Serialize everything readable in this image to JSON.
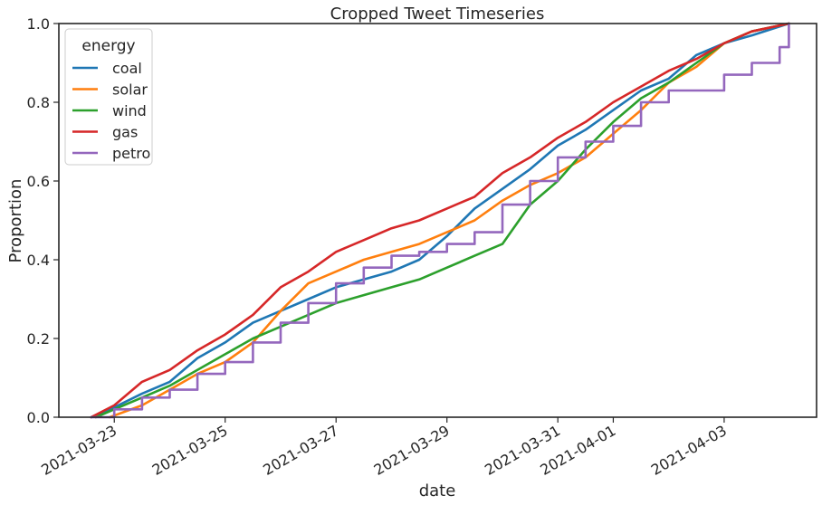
{
  "chart_data": {
    "type": "line",
    "title": "Cropped Tweet Timeseries",
    "xlabel": "date",
    "ylabel": "Proportion",
    "xlim": [
      "2021-03-22T00:00",
      "2021-04-04T16:00"
    ],
    "ylim": [
      0,
      1
    ],
    "x_ticks": [
      "2021-03-23",
      "2021-03-25",
      "2021-03-27",
      "2021-03-29",
      "2021-03-31",
      "2021-04-01",
      "2021-04-03"
    ],
    "y_ticks": [
      "0.0",
      "0.2",
      "0.4",
      "0.6",
      "0.8",
      "1.0"
    ],
    "grid": false,
    "legend": {
      "title": "energy",
      "placement": "top-left"
    },
    "series": [
      {
        "name": "coal",
        "color": "#1f77b4",
        "step": false,
        "x": [
          "2021-03-22T14:00",
          "2021-03-23T00:00",
          "2021-03-23T12:00",
          "2021-03-24T00:00",
          "2021-03-24T12:00",
          "2021-03-25T00:00",
          "2021-03-25T12:00",
          "2021-03-26T00:00",
          "2021-03-26T12:00",
          "2021-03-27T00:00",
          "2021-03-27T12:00",
          "2021-03-28T00:00",
          "2021-03-28T12:00",
          "2021-03-29T00:00",
          "2021-03-29T12:00",
          "2021-03-30T00:00",
          "2021-03-30T12:00",
          "2021-03-31T00:00",
          "2021-03-31T12:00",
          "2021-04-01T00:00",
          "2021-04-01T12:00",
          "2021-04-02T00:00",
          "2021-04-02T12:00",
          "2021-04-03T00:00",
          "2021-04-03T12:00",
          "2021-04-04T04:00"
        ],
        "y": [
          0.0,
          0.025,
          0.06,
          0.09,
          0.15,
          0.19,
          0.24,
          0.27,
          0.3,
          0.33,
          0.35,
          0.37,
          0.4,
          0.46,
          0.53,
          0.58,
          0.63,
          0.69,
          0.73,
          0.78,
          0.83,
          0.86,
          0.92,
          0.95,
          0.97,
          1.0
        ]
      },
      {
        "name": "solar",
        "color": "#ff7f0e",
        "step": false,
        "x": [
          "2021-03-22T22:00",
          "2021-03-23T12:00",
          "2021-03-24T00:00",
          "2021-03-24T12:00",
          "2021-03-25T00:00",
          "2021-03-25T12:00",
          "2021-03-26T00:00",
          "2021-03-26T12:00",
          "2021-03-27T00:00",
          "2021-03-27T12:00",
          "2021-03-28T00:00",
          "2021-03-28T12:00",
          "2021-03-29T00:00",
          "2021-03-29T12:00",
          "2021-03-30T00:00",
          "2021-03-30T12:00",
          "2021-03-31T00:00",
          "2021-03-31T12:00",
          "2021-04-01T00:00",
          "2021-04-01T12:00",
          "2021-04-02T00:00",
          "2021-04-02T12:00",
          "2021-04-03T00:00",
          "2021-04-03T12:00",
          "2021-04-04T04:00"
        ],
        "y": [
          0.0,
          0.03,
          0.07,
          0.11,
          0.14,
          0.19,
          0.27,
          0.34,
          0.37,
          0.4,
          0.42,
          0.44,
          0.47,
          0.5,
          0.55,
          0.59,
          0.62,
          0.66,
          0.72,
          0.78,
          0.85,
          0.89,
          0.95,
          0.98,
          1.0
        ]
      },
      {
        "name": "wind",
        "color": "#2ca02c",
        "step": false,
        "x": [
          "2021-03-22T16:00",
          "2021-03-23T00:00",
          "2021-03-23T12:00",
          "2021-03-24T00:00",
          "2021-03-24T12:00",
          "2021-03-25T00:00",
          "2021-03-25T12:00",
          "2021-03-26T00:00",
          "2021-03-26T12:00",
          "2021-03-27T00:00",
          "2021-03-27T12:00",
          "2021-03-28T00:00",
          "2021-03-28T12:00",
          "2021-03-29T00:00",
          "2021-03-29T12:00",
          "2021-03-30T00:00",
          "2021-03-30T12:00",
          "2021-03-31T00:00",
          "2021-03-31T12:00",
          "2021-04-01T00:00",
          "2021-04-01T12:00",
          "2021-04-02T00:00",
          "2021-04-02T12:00",
          "2021-04-03T00:00",
          "2021-04-03T12:00",
          "2021-04-04T04:00"
        ],
        "y": [
          0.0,
          0.02,
          0.05,
          0.08,
          0.12,
          0.16,
          0.2,
          0.23,
          0.26,
          0.29,
          0.31,
          0.33,
          0.35,
          0.38,
          0.41,
          0.44,
          0.54,
          0.6,
          0.68,
          0.75,
          0.81,
          0.85,
          0.9,
          0.95,
          0.98,
          1.0
        ]
      },
      {
        "name": "gas",
        "color": "#d62728",
        "step": false,
        "x": [
          "2021-03-22T14:00",
          "2021-03-23T00:00",
          "2021-03-23T12:00",
          "2021-03-24T00:00",
          "2021-03-24T12:00",
          "2021-03-25T00:00",
          "2021-03-25T12:00",
          "2021-03-26T00:00",
          "2021-03-26T12:00",
          "2021-03-27T00:00",
          "2021-03-27T12:00",
          "2021-03-28T00:00",
          "2021-03-28T12:00",
          "2021-03-29T00:00",
          "2021-03-29T12:00",
          "2021-03-30T00:00",
          "2021-03-30T12:00",
          "2021-03-31T00:00",
          "2021-03-31T12:00",
          "2021-04-01T00:00",
          "2021-04-01T12:00",
          "2021-04-02T00:00",
          "2021-04-02T12:00",
          "2021-04-03T00:00",
          "2021-04-03T12:00",
          "2021-04-04T04:00"
        ],
        "y": [
          0.0,
          0.03,
          0.09,
          0.12,
          0.17,
          0.21,
          0.26,
          0.33,
          0.37,
          0.42,
          0.45,
          0.48,
          0.5,
          0.53,
          0.56,
          0.62,
          0.66,
          0.71,
          0.75,
          0.8,
          0.84,
          0.88,
          0.91,
          0.95,
          0.98,
          1.0
        ]
      },
      {
        "name": "petro",
        "color": "#9467bd",
        "step": true,
        "x": [
          "2021-03-22T14:00",
          "2021-03-23T00:00",
          "2021-03-23T12:00",
          "2021-03-24T00:00",
          "2021-03-24T12:00",
          "2021-03-25T00:00",
          "2021-03-25T12:00",
          "2021-03-26T00:00",
          "2021-03-26T12:00",
          "2021-03-27T00:00",
          "2021-03-27T12:00",
          "2021-03-28T00:00",
          "2021-03-28T12:00",
          "2021-03-29T00:00",
          "2021-03-29T12:00",
          "2021-03-30T00:00",
          "2021-03-30T12:00",
          "2021-03-31T00:00",
          "2021-03-31T12:00",
          "2021-04-01T00:00",
          "2021-04-01T12:00",
          "2021-04-02T00:00",
          "2021-04-02T12:00",
          "2021-04-03T00:00",
          "2021-04-03T12:00",
          "2021-04-04T00:00",
          "2021-04-04T04:00"
        ],
        "y": [
          0.0,
          0.02,
          0.05,
          0.07,
          0.11,
          0.14,
          0.19,
          0.24,
          0.29,
          0.34,
          0.38,
          0.41,
          0.42,
          0.44,
          0.47,
          0.54,
          0.6,
          0.66,
          0.7,
          0.74,
          0.8,
          0.83,
          0.83,
          0.87,
          0.9,
          0.94,
          1.0
        ]
      }
    ]
  }
}
